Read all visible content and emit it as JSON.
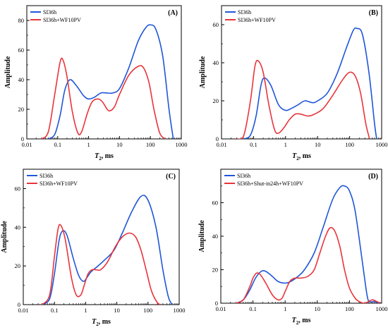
{
  "colors": {
    "series_1": "#1f56d8",
    "series_2": "#e8353b",
    "axes": "#000000"
  },
  "chart_data": [
    {
      "type": "line",
      "panel_label": "(A)",
      "xlabel_main": "T",
      "xlabel_sub": "2",
      "xlabel_unit": ",  ms",
      "ylabel": "Amplitude",
      "x_scale": "log",
      "xlim": [
        0.01,
        1000
      ],
      "ylim": [
        0,
        90
      ],
      "x_ticks": [
        "0.01",
        "0.1",
        "1",
        "10",
        "100",
        "1000"
      ],
      "y_ticks": [
        0,
        20,
        40,
        60,
        80
      ],
      "grid": false,
      "legend_position": "top-left",
      "series": [
        {
          "name": "SI36h",
          "color": "#1f56d8",
          "x": [
            0.05,
            0.08,
            0.12,
            0.17,
            0.25,
            0.4,
            0.7,
            1.0,
            1.5,
            2.5,
            4,
            6,
            10,
            20,
            40,
            70,
            100,
            150,
            250,
            400,
            550
          ],
          "y": [
            0,
            3,
            16,
            33,
            40,
            36,
            29,
            27,
            28,
            31,
            31,
            31,
            34,
            48,
            66,
            75,
            77,
            74,
            56,
            20,
            0
          ]
        },
        {
          "name": "SI36h+WF10PV",
          "color": "#e8353b",
          "x": [
            0.03,
            0.05,
            0.08,
            0.12,
            0.15,
            0.2,
            0.3,
            0.45,
            0.6,
            0.9,
            1.3,
            2.0,
            2.8,
            4,
            5,
            7,
            10,
            20,
            40,
            60,
            90,
            130,
            200,
            300
          ],
          "y": [
            0,
            5,
            30,
            52,
            53,
            42,
            18,
            4,
            5,
            17,
            25,
            27,
            25,
            20,
            19,
            22,
            30,
            43,
            49,
            48,
            38,
            20,
            4,
            0
          ]
        }
      ]
    },
    {
      "type": "line",
      "panel_label": "(B)",
      "xlabel_main": "T",
      "xlabel_sub": "2",
      "xlabel_unit": ",  ms",
      "ylabel": "Amplitude",
      "x_scale": "log",
      "xlim": [
        0.01,
        1000
      ],
      "ylim": [
        0,
        70
      ],
      "x_ticks": [
        "0.01",
        "0.1",
        "1",
        "10",
        "100",
        "1000"
      ],
      "y_ticks": [
        0,
        20,
        40,
        60
      ],
      "grid": false,
      "legend_position": "top-left",
      "series": [
        {
          "name": "SI36h",
          "color": "#1f56d8",
          "x": [
            0.05,
            0.08,
            0.12,
            0.17,
            0.22,
            0.35,
            0.6,
            1.0,
            1.5,
            2.5,
            4,
            7,
            10,
            20,
            40,
            80,
            130,
            170,
            250,
            400,
            600,
            700
          ],
          "y": [
            0,
            2,
            12,
            28,
            32,
            28,
            18,
            15,
            16,
            18,
            20,
            19,
            20,
            24,
            34,
            48,
            57,
            58,
            55,
            35,
            8,
            0
          ]
        },
        {
          "name": "SI36h+WF10PV",
          "color": "#e8353b",
          "x": [
            0.03,
            0.05,
            0.08,
            0.11,
            0.14,
            0.2,
            0.3,
            0.45,
            0.6,
            0.9,
            1.3,
            2.0,
            3,
            5,
            8,
            15,
            30,
            60,
            100,
            150,
            220,
            320,
            420
          ],
          "y": [
            0,
            2,
            20,
            38,
            41,
            35,
            18,
            5,
            3,
            6,
            10,
            13,
            13,
            12,
            13,
            16,
            23,
            31,
            35,
            33,
            24,
            8,
            0
          ]
        }
      ]
    },
    {
      "type": "line",
      "panel_label": "(C)",
      "xlabel_main": "T",
      "xlabel_sub": "2",
      "xlabel_unit": ",  ms",
      "ylabel": "Amplitude",
      "x_scale": "log",
      "xlim": [
        0.01,
        1000
      ],
      "ylim": [
        0,
        70
      ],
      "x_ticks": [
        "0.01",
        "0.1",
        "1",
        "10",
        "100",
        "1000"
      ],
      "y_ticks": [
        0,
        20,
        40,
        60
      ],
      "grid": false,
      "legend_position": "top-left",
      "series": [
        {
          "name": "SI36h",
          "color": "#1f56d8",
          "x": [
            0.04,
            0.07,
            0.1,
            0.14,
            0.18,
            0.25,
            0.4,
            0.6,
            0.85,
            1.1,
            1.5,
            2.5,
            4,
            8,
            15,
            30,
            60,
            100,
            180,
            300,
            450,
            600
          ],
          "y": [
            0,
            3,
            16,
            33,
            38,
            36,
            24,
            15,
            12,
            14,
            17,
            20,
            23,
            28,
            37,
            48,
            56,
            54,
            40,
            18,
            4,
            0
          ]
        },
        {
          "name": "SI36h+WF10PV",
          "color": "#e8353b",
          "x": [
            0.04,
            0.07,
            0.1,
            0.13,
            0.16,
            0.22,
            0.35,
            0.5,
            0.7,
            0.9,
            1.2,
            1.6,
            2.2,
            3,
            5,
            9,
            15,
            25,
            40,
            60,
            90,
            130,
            200,
            260
          ],
          "y": [
            0,
            5,
            25,
            39,
            41,
            34,
            14,
            5,
            5,
            10,
            16,
            18,
            18,
            18,
            22,
            30,
            35,
            37,
            35,
            28,
            17,
            7,
            1,
            0
          ]
        }
      ]
    },
    {
      "type": "line",
      "panel_label": "(D)",
      "xlabel_main": "T",
      "xlabel_sub": "2",
      "xlabel_unit": ",  ms",
      "ylabel": "Amplitude",
      "x_scale": "log",
      "xlim": [
        0.01,
        1000
      ],
      "ylim": [
        0,
        80
      ],
      "x_ticks": [
        "0.01",
        "0.1",
        "1",
        "10",
        "100",
        "1000"
      ],
      "y_ticks": [
        0,
        20,
        40,
        60
      ],
      "grid": false,
      "legend_position": "top-left",
      "series": [
        {
          "name": "SI36h",
          "color": "#1f56d8",
          "x": [
            0.03,
            0.05,
            0.08,
            0.12,
            0.18,
            0.25,
            0.4,
            0.6,
            1.0,
            1.5,
            2.5,
            4,
            8,
            15,
            30,
            50,
            70,
            100,
            150,
            250,
            350,
            420,
            600,
            800
          ],
          "y": [
            0,
            2,
            8,
            15,
            19,
            19,
            16,
            13,
            12,
            13,
            16,
            20,
            30,
            45,
            62,
            69,
            70,
            67,
            55,
            25,
            5,
            1,
            1,
            0
          ]
        },
        {
          "name": "SI36h+Shut-in24h+WF10PV",
          "color": "#e8353b",
          "x": [
            0.03,
            0.05,
            0.08,
            0.1,
            0.13,
            0.17,
            0.25,
            0.4,
            0.6,
            0.8,
            1.0,
            1.4,
            2.0,
            3,
            5,
            8,
            12,
            18,
            25,
            35,
            50,
            70,
            100,
            150,
            200,
            300,
            500,
            700,
            900
          ],
          "y": [
            0,
            2,
            10,
            15,
            18,
            17,
            12,
            5,
            2,
            3,
            7,
            13,
            15,
            15,
            16,
            20,
            30,
            40,
            45,
            43,
            34,
            20,
            9,
            3,
            1,
            0,
            2,
            1,
            0
          ]
        }
      ]
    }
  ]
}
